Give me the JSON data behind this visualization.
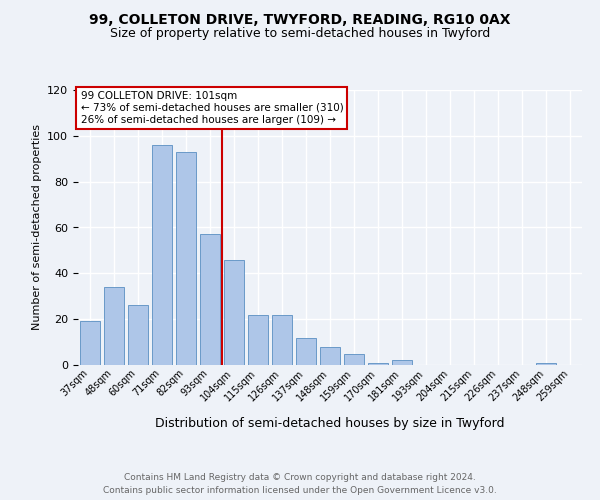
{
  "title_line1": "99, COLLETON DRIVE, TWYFORD, READING, RG10 0AX",
  "title_line2": "Size of property relative to semi-detached houses in Twyford",
  "xlabel": "Distribution of semi-detached houses by size in Twyford",
  "ylabel": "Number of semi-detached properties",
  "categories": [
    "37sqm",
    "48sqm",
    "60sqm",
    "71sqm",
    "82sqm",
    "93sqm",
    "104sqm",
    "115sqm",
    "126sqm",
    "137sqm",
    "148sqm",
    "159sqm",
    "170sqm",
    "181sqm",
    "193sqm",
    "204sqm",
    "215sqm",
    "226sqm",
    "237sqm",
    "248sqm",
    "259sqm"
  ],
  "values": [
    19,
    34,
    26,
    96,
    93,
    57,
    46,
    22,
    22,
    12,
    8,
    5,
    1,
    2,
    0,
    0,
    0,
    0,
    0,
    1,
    0
  ],
  "bar_color": "#aec6e8",
  "bar_edge_color": "#5a8fc2",
  "vline_color": "#cc0000",
  "annotation_title": "99 COLLETON DRIVE: 101sqm",
  "annotation_line2": "← 73% of semi-detached houses are smaller (310)",
  "annotation_line3": "26% of semi-detached houses are larger (109) →",
  "annotation_box_color": "#cc0000",
  "footer_line1": "Contains HM Land Registry data © Crown copyright and database right 2024.",
  "footer_line2": "Contains public sector information licensed under the Open Government Licence v3.0.",
  "ylim": [
    0,
    120
  ],
  "yticks": [
    0,
    20,
    40,
    60,
    80,
    100,
    120
  ],
  "background_color": "#eef2f8",
  "grid_color": "#ffffff",
  "title_fontsize": 10,
  "subtitle_fontsize": 9
}
